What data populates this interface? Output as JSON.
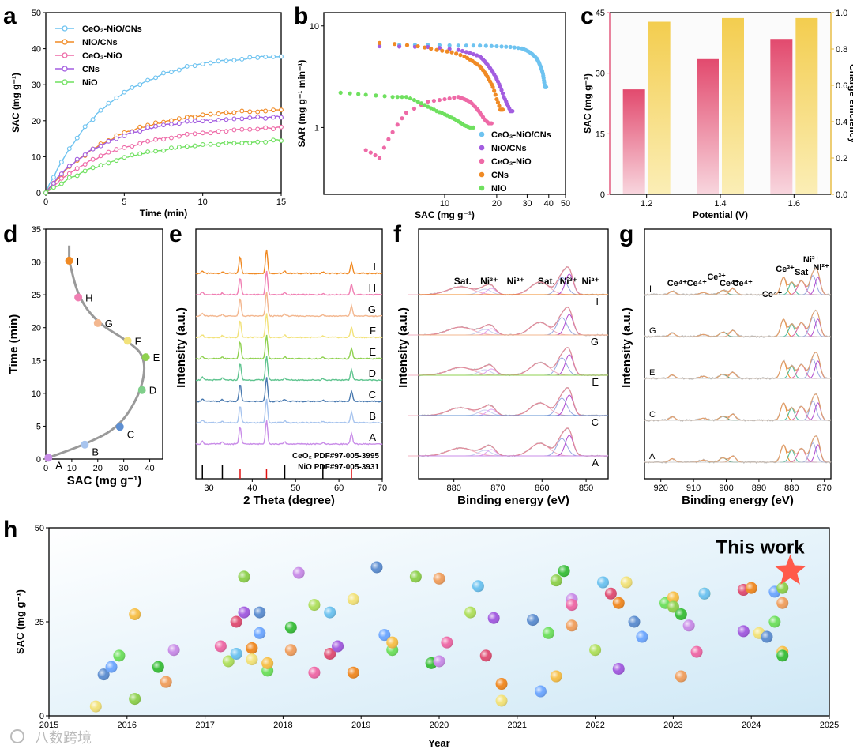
{
  "panels": {
    "a": "a",
    "b": "b",
    "c": "c",
    "d": "d",
    "e": "e",
    "f": "f",
    "g": "g",
    "h": "h"
  },
  "watermark": "八数跨境",
  "colors": {
    "ceo2_nio_cns": "#6ec3f0",
    "nio_cns": "#f08a24",
    "ceo2_nio": "#ee6aa7",
    "cns": "#a35de0",
    "nio": "#6fe05f",
    "pink": "#e05075",
    "gold": "#f2cf5a",
    "star": "#ff5a4a"
  },
  "chart_data": [
    {
      "id": "a",
      "type": "line",
      "xlabel": "Time (min)",
      "ylabel": "SAC (mg g⁻¹)",
      "xlim": [
        0,
        15
      ],
      "ylim": [
        0,
        50
      ],
      "xticks": [
        "0",
        "5",
        "10",
        "15"
      ],
      "yticks": [
        "0",
        "10",
        "20",
        "30",
        "40",
        "50"
      ],
      "series": [
        {
          "name": "CeO₂-NiO/CNs",
          "color": "#6ec3f0",
          "final": 38,
          "tau": 4.0
        },
        {
          "name": "NiO/CNs",
          "color": "#f08a24",
          "final": 23,
          "tau": 4.2
        },
        {
          "name": "CeO₂-NiO",
          "color": "#ee6aa7",
          "final": 18,
          "tau": 4.5
        },
        {
          "name": "CNs",
          "color": "#a35de0",
          "final": 21,
          "tau": 3.6
        },
        {
          "name": "NiO",
          "color": "#6fe05f",
          "final": 14.5,
          "tau": 5.0
        }
      ]
    },
    {
      "id": "b",
      "type": "scatter",
      "xlabel": "SAC (mg g⁻¹)",
      "ylabel": "SAR (mg g⁻¹ min⁻¹)",
      "xscale": "log",
      "yscale": "log",
      "xticks": [
        "10",
        "20",
        "30",
        "40",
        "50"
      ],
      "yticks": [
        "1",
        "10"
      ],
      "series": [
        {
          "name": "CeO₂-NiO/CNs",
          "color": "#6ec3f0",
          "x": [
            4.2,
            8,
            12,
            16,
            20,
            24,
            28,
            30,
            32,
            34,
            35,
            36,
            37,
            37.5,
            38
          ],
          "y": [
            6.5,
            6.5,
            6.4,
            6.4,
            6.3,
            6.2,
            6.0,
            5.7,
            5.3,
            4.8,
            4.4,
            3.9,
            3.4,
            2.9,
            2.5
          ]
        },
        {
          "name": "NiO/CNs",
          "color": "#a35de0",
          "x": [
            4.2,
            8,
            12,
            14,
            16,
            17,
            18,
            19,
            20,
            21,
            22,
            23,
            24
          ],
          "y": [
            6.3,
            6.2,
            5.8,
            5.4,
            5.0,
            4.5,
            4.0,
            3.5,
            3.0,
            2.5,
            2.0,
            1.7,
            1.45
          ]
        },
        {
          "name": "CeO₂-NiO",
          "color": "#ee6aa7",
          "x": [
            3.5,
            4.2,
            5,
            6,
            8,
            10,
            12,
            13,
            14,
            15,
            16,
            17,
            18
          ],
          "y": [
            0.6,
            0.5,
            0.9,
            1.4,
            1.8,
            1.9,
            2.0,
            1.9,
            1.8,
            1.6,
            1.4,
            1.2,
            1.1
          ]
        },
        {
          "name": "CNs",
          "color": "#f08a24",
          "x": [
            4.2,
            7,
            9,
            11,
            13,
            14.5,
            16,
            17,
            18,
            19,
            20,
            21
          ],
          "y": [
            6.8,
            6.3,
            5.8,
            5.5,
            5.0,
            4.5,
            4.0,
            3.5,
            3.0,
            2.5,
            1.9,
            1.5
          ]
        },
        {
          "name": "NiO",
          "color": "#6fe05f",
          "x": [
            2.5,
            3.5,
            5,
            6,
            7,
            8,
            9,
            10,
            11,
            12,
            13,
            14
          ],
          "y": [
            2.2,
            2.1,
            2.0,
            2.0,
            1.8,
            1.6,
            1.45,
            1.35,
            1.25,
            1.15,
            1.05,
            1.0
          ]
        }
      ]
    },
    {
      "id": "c",
      "type": "bar",
      "xlabel": "Potential (V)",
      "ylabel": "SAC (mg g⁻¹)",
      "y2label": "Charge efficiency",
      "categories": [
        "1.2",
        "1.4",
        "1.6"
      ],
      "sac": [
        26,
        33.5,
        38.5
      ],
      "efficiency": [
        0.95,
        0.97,
        0.97
      ],
      "ylim": [
        0,
        45
      ],
      "y2lim": [
        0,
        1.0
      ],
      "yticks": [
        "0",
        "15",
        "30",
        "45"
      ],
      "y2ticks": [
        "0.0",
        "0.2",
        "0.4",
        "0.6",
        "0.8",
        "1.0"
      ]
    },
    {
      "id": "d",
      "type": "line",
      "xlabel": "SAC (mg g⁻¹)",
      "ylabel": "Time (min)",
      "xlim": [
        0,
        45
      ],
      "ylim": [
        0,
        35
      ],
      "xticks": [
        "0",
        "10",
        "20",
        "30",
        "40"
      ],
      "yticks": [
        "0",
        "5",
        "10",
        "15",
        "20",
        "25",
        "30",
        "35"
      ],
      "points": [
        {
          "label": "A",
          "x": 1,
          "y": 0.2,
          "color": "#c98de8"
        },
        {
          "label": "B",
          "x": 15,
          "y": 2.2,
          "color": "#a7c4ee"
        },
        {
          "label": "C",
          "x": 28.5,
          "y": 4.9,
          "color": "#5e8fd1"
        },
        {
          "label": "D",
          "x": 37,
          "y": 10.5,
          "color": "#7fcf8a"
        },
        {
          "label": "E",
          "x": 38.5,
          "y": 15.5,
          "color": "#8fd14f"
        },
        {
          "label": "F",
          "x": 31.5,
          "y": 18,
          "color": "#f2e27a"
        },
        {
          "label": "G",
          "x": 20,
          "y": 20.7,
          "color": "#f3b78f"
        },
        {
          "label": "H",
          "x": 12.5,
          "y": 24.6,
          "color": "#f07fb3"
        },
        {
          "label": "I",
          "x": 9,
          "y": 30.2,
          "color": "#f08a24"
        }
      ]
    },
    {
      "id": "e",
      "type": "line",
      "xlabel": "2 Theta (degree)",
      "ylabel": "Intensity (a.u.)",
      "xlim": [
        27,
        70
      ],
      "xticks": [
        "30",
        "40",
        "50",
        "60",
        "70"
      ],
      "traces": [
        {
          "label": "I",
          "color": "#f08a24"
        },
        {
          "label": "H",
          "color": "#f07fb3"
        },
        {
          "label": "G",
          "color": "#f3b78f"
        },
        {
          "label": "F",
          "color": "#f2e27a"
        },
        {
          "label": "E",
          "color": "#8fd14f"
        },
        {
          "label": "D",
          "color": "#5fc48f"
        },
        {
          "label": "C",
          "color": "#4a7ab0"
        },
        {
          "label": "B",
          "color": "#a7c4ee"
        },
        {
          "label": "A",
          "color": "#c98de8"
        }
      ],
      "references": [
        {
          "name": "CeO₂ PDF#97-005-3995",
          "color": "#000000",
          "peaks": [
            28.5,
            33.1,
            47.5,
            56.3
          ]
        },
        {
          "name": "NiO PDF#97-005-3931",
          "color": "#e01010",
          "peaks": [
            37.2,
            43.3,
            62.9
          ]
        }
      ]
    },
    {
      "id": "f",
      "type": "line",
      "xlabel": "Binding energy (eV)",
      "ylabel": "Intensity (a.u.)",
      "xlim": [
        888,
        845
      ],
      "xticks": [
        "880",
        "870",
        "860",
        "850"
      ],
      "annotations": [
        "Sat.",
        "Ni³⁺",
        "Ni²⁺",
        "Sat.",
        "Ni³⁺",
        "Ni²⁺"
      ],
      "traces": [
        {
          "label": "I",
          "color": "#f08a24"
        },
        {
          "label": "G",
          "color": "#f3b78f"
        },
        {
          "label": "E",
          "color": "#8fd14f"
        },
        {
          "label": "C",
          "color": "#5e8fd1"
        },
        {
          "label": "A",
          "color": "#c98de8"
        }
      ]
    },
    {
      "id": "g",
      "type": "line",
      "xlabel": "Binding energy (eV)",
      "ylabel": "Intensity (a.u.)",
      "xlim": [
        925,
        868
      ],
      "xticks": [
        "920",
        "910",
        "900",
        "890",
        "880",
        "870"
      ],
      "annotations": [
        "Ce⁴⁺",
        "Ce⁴⁺",
        "Ce³⁺",
        "Ce⁴⁺",
        "Ce⁴⁺",
        "Ce⁴⁺",
        "Ce³⁺",
        "Sat",
        "Ni³⁺",
        "Ni²⁺"
      ],
      "traces": [
        {
          "label": "I",
          "color": "#5e8fd1"
        },
        {
          "label": "G",
          "color": "#f3b78f"
        },
        {
          "label": "E",
          "color": "#5fc48f"
        },
        {
          "label": "C",
          "color": "#5e8fd1"
        },
        {
          "label": "A",
          "color": "#c98de8"
        }
      ]
    },
    {
      "id": "h",
      "type": "scatter",
      "xlabel": "Year",
      "ylabel": "SAC (mg g⁻¹)",
      "xlim": [
        2015,
        2025
      ],
      "ylim": [
        0,
        50
      ],
      "xticks": [
        "2015",
        "2016",
        "2017",
        "2018",
        "2019",
        "2020",
        "2021",
        "2022",
        "2023",
        "2024",
        "2025"
      ],
      "yticks": [
        "0",
        "25",
        "50"
      ],
      "highlight": {
        "label": "This work",
        "x": 2024.5,
        "y": 38.5
      },
      "points": [
        [
          2015.6,
          2.5
        ],
        [
          2015.7,
          11
        ],
        [
          2015.8,
          13
        ],
        [
          2015.9,
          16
        ],
        [
          2016.1,
          27
        ],
        [
          2016.1,
          4.5
        ],
        [
          2016.4,
          13
        ],
        [
          2016.5,
          9
        ],
        [
          2016.6,
          17.5
        ],
        [
          2017.2,
          18.5
        ],
        [
          2017.3,
          14.5
        ],
        [
          2017.4,
          16.5
        ],
        [
          2017.4,
          25
        ],
        [
          2017.5,
          27.5
        ],
        [
          2017.6,
          18
        ],
        [
          2017.6,
          15
        ],
        [
          2017.7,
          27.5
        ],
        [
          2017.7,
          22
        ],
        [
          2017.8,
          12
        ],
        [
          2017.8,
          14
        ],
        [
          2017.5,
          37
        ],
        [
          2018.1,
          23.5
        ],
        [
          2018.1,
          17.5
        ],
        [
          2018.2,
          38
        ],
        [
          2018.4,
          11.5
        ],
        [
          2018.4,
          29.5
        ],
        [
          2018.6,
          27.5
        ],
        [
          2018.6,
          16.5
        ],
        [
          2018.7,
          18.5
        ],
        [
          2018.9,
          11.5
        ],
        [
          2018.9,
          31
        ],
        [
          2019.2,
          39.5
        ],
        [
          2019.3,
          21.5
        ],
        [
          2019.4,
          17.5
        ],
        [
          2019.4,
          19.5
        ],
        [
          2019.7,
          37
        ],
        [
          2019.9,
          14
        ],
        [
          2020.0,
          36.5
        ],
        [
          2020.0,
          14.5
        ],
        [
          2020.1,
          19.5
        ],
        [
          2020.4,
          27.5
        ],
        [
          2020.5,
          34.5
        ],
        [
          2020.6,
          16
        ],
        [
          2020.7,
          26
        ],
        [
          2020.8,
          8.5
        ],
        [
          2020.8,
          4
        ],
        [
          2021.2,
          25.5
        ],
        [
          2021.3,
          6.5
        ],
        [
          2021.4,
          22
        ],
        [
          2021.5,
          10.5
        ],
        [
          2021.5,
          36
        ],
        [
          2021.6,
          38.5
        ],
        [
          2021.7,
          24
        ],
        [
          2021.7,
          31
        ],
        [
          2021.7,
          29.5
        ],
        [
          2022.0,
          17.5
        ],
        [
          2022.1,
          35.5
        ],
        [
          2022.2,
          32.5
        ],
        [
          2022.3,
          12.5
        ],
        [
          2022.3,
          30
        ],
        [
          2022.4,
          35.5
        ],
        [
          2022.5,
          25
        ],
        [
          2022.6,
          21
        ],
        [
          2022.9,
          30
        ],
        [
          2023.0,
          31.5
        ],
        [
          2023.0,
          29
        ],
        [
          2023.1,
          27
        ],
        [
          2023.1,
          10.5
        ],
        [
          2023.2,
          24
        ],
        [
          2023.3,
          17
        ],
        [
          2023.4,
          32.5
        ],
        [
          2023.4,
          32.5
        ],
        [
          2023.9,
          33.5
        ],
        [
          2023.9,
          22.5
        ],
        [
          2024.0,
          34
        ],
        [
          2024.1,
          22
        ],
        [
          2024.2,
          21
        ],
        [
          2024.3,
          33
        ],
        [
          2024.3,
          25
        ],
        [
          2024.4,
          17
        ],
        [
          2024.4,
          34
        ],
        [
          2024.4,
          16
        ],
        [
          2024.4,
          30
        ]
      ]
    }
  ]
}
